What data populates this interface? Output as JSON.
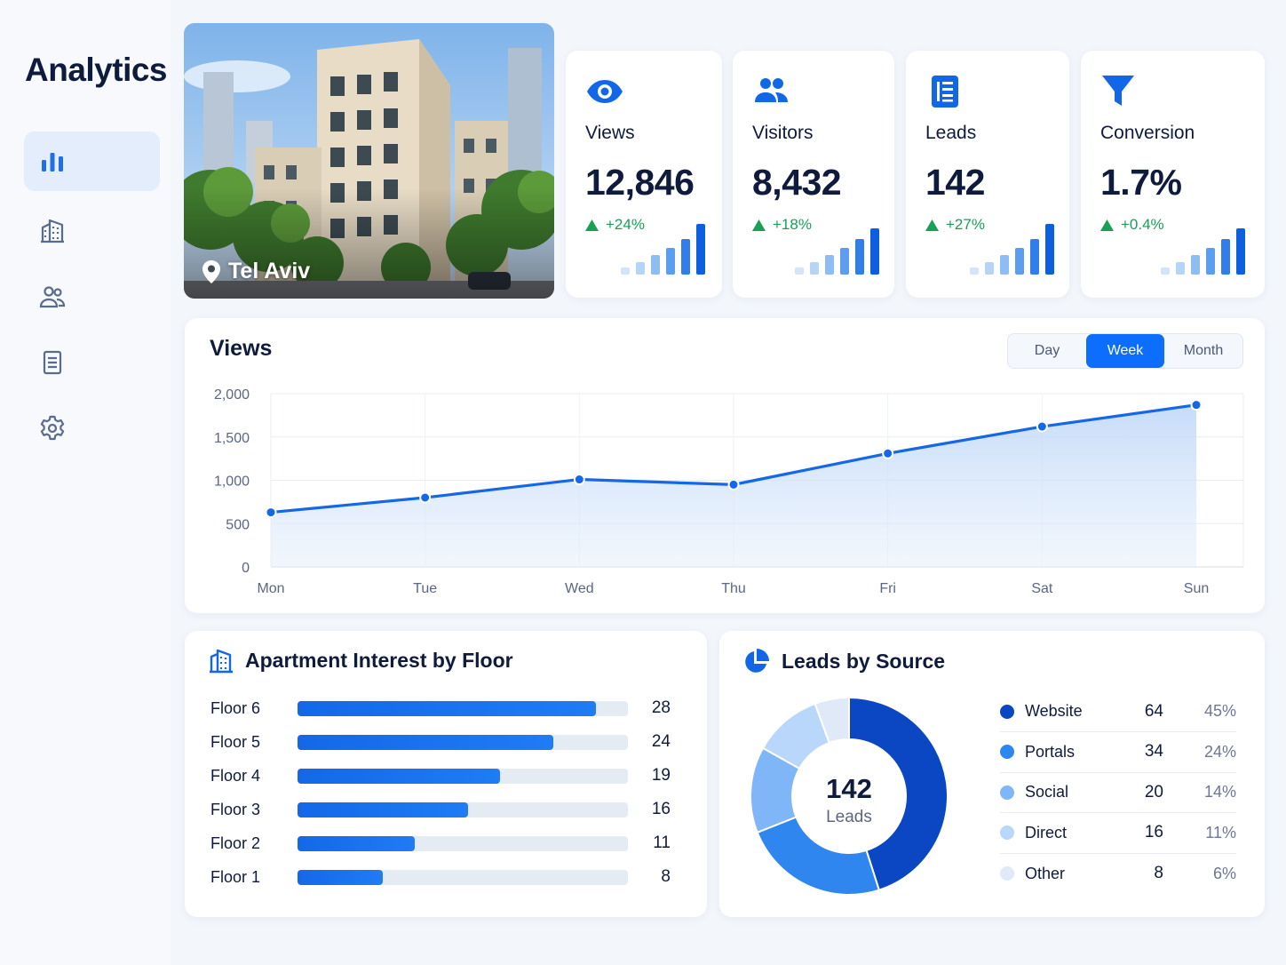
{
  "sidebar": {
    "title": "Analytics",
    "items": [
      {
        "icon": "bar-chart-icon",
        "active": true
      },
      {
        "icon": "building-icon",
        "active": false
      },
      {
        "icon": "users-icon",
        "active": false
      },
      {
        "icon": "document-icon",
        "active": false
      },
      {
        "icon": "gear-icon",
        "active": false
      }
    ]
  },
  "hero": {
    "location": "Tel Aviv",
    "icon": "location-pin-icon"
  },
  "kpis": [
    {
      "label": "Views",
      "value": "12,846",
      "delta": "+24%",
      "icon": "eye-icon"
    },
    {
      "label": "Visitors",
      "value": "8,432",
      "delta": "+18%",
      "icon": "users-icon"
    },
    {
      "label": "Leads",
      "value": "142",
      "delta": "+27%",
      "icon": "list-icon"
    },
    {
      "label": "Conversion",
      "value": "1.7%",
      "delta": "+0.4%",
      "icon": "funnel-icon"
    }
  ],
  "colors": {
    "accent": "#0d6efd",
    "positive": "#18a058",
    "text": "#0f1b3d"
  },
  "views_chart": {
    "title": "Views",
    "ranges": [
      "Day",
      "Week",
      "Month"
    ],
    "selected_range": "Week"
  },
  "floor_panel": {
    "title": "Apartment Interest by Floor"
  },
  "leads_panel": {
    "title": "Leads by Source",
    "center_value": "142",
    "center_label": "Leads"
  },
  "chart_data": [
    {
      "type": "line",
      "categories": [
        "Mon",
        "Tue",
        "Wed",
        "Thu",
        "Fri",
        "Sat",
        "Sun"
      ],
      "values": [
        630,
        800,
        1010,
        950,
        1310,
        1620,
        1870
      ],
      "ylim": [
        0,
        2000
      ],
      "yticks": [
        "0",
        "500",
        "1,000",
        "1,500",
        "2,000"
      ],
      "ytick_values": [
        0,
        500,
        1000,
        1500,
        2000
      ],
      "grid": true,
      "area": true
    },
    {
      "type": "bar",
      "orientation": "horizontal",
      "categories": [
        "Floor 6",
        "Floor 5",
        "Floor 4",
        "Floor 3",
        "Floor 2",
        "Floor 1"
      ],
      "values": [
        28,
        24,
        19,
        16,
        11,
        8
      ],
      "xlim": [
        0,
        31
      ]
    },
    {
      "type": "pie",
      "donut": true,
      "labels": [
        "Website",
        "Portals",
        "Social",
        "Direct",
        "Other"
      ],
      "values": [
        64,
        34,
        20,
        16,
        8
      ],
      "percents": [
        "45%",
        "24%",
        "14%",
        "11%",
        "6%"
      ],
      "colors": [
        "#0b47c2",
        "#2f86ef",
        "#7fb6f7",
        "#b9d7fb",
        "#dfe9f7"
      ]
    }
  ]
}
